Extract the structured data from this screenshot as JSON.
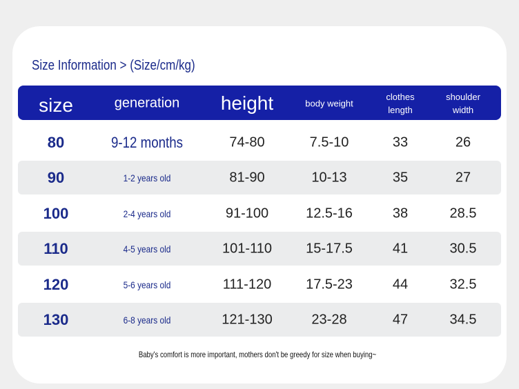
{
  "header": {
    "title": "Size Information > (Size/cm/kg)"
  },
  "table": {
    "columns": [
      "size",
      "generation",
      "height",
      "body weight",
      "clothes length",
      "shoulder width"
    ],
    "rows": [
      [
        "80",
        "9-12 months",
        "74-80",
        "7.5-10",
        "33",
        "26"
      ],
      [
        "90",
        "1-2 years old",
        "81-90",
        "10-13",
        "35",
        "27"
      ],
      [
        "100",
        "2-4 years old",
        "91-100",
        "12.5-16",
        "38",
        "28.5"
      ],
      [
        "110",
        "4-5 years old",
        "101-110",
        "15-17.5",
        "41",
        "30.5"
      ],
      [
        "120",
        "5-6 years old",
        "111-120",
        "17.5-23",
        "44",
        "32.5"
      ],
      [
        "130",
        "6-8 years old",
        "121-130",
        "23-28",
        "47",
        "34.5"
      ]
    ]
  },
  "footer": {
    "note": "Baby's comfort is more important, mothers don't be greedy for size when buying~"
  }
}
